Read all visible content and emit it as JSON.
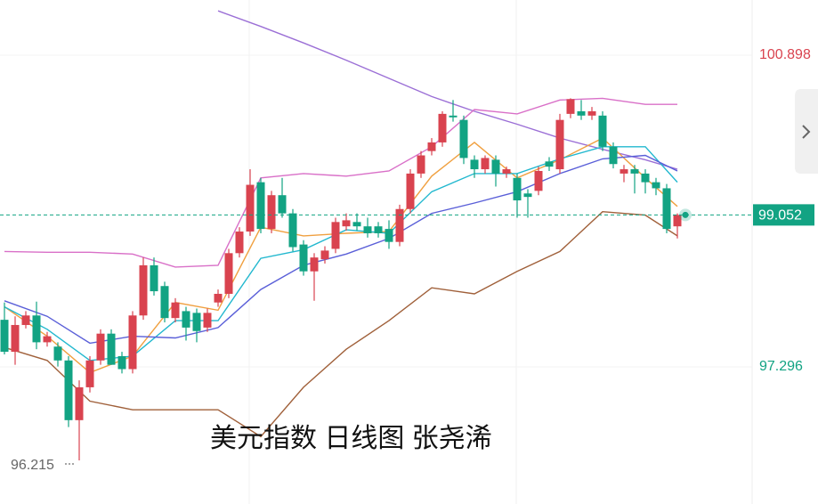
{
  "chart_data": {
    "type": "candlestick",
    "title": "美元指数 日线图 张尧浠",
    "ylim": [
      95.711,
      101.536
    ],
    "yticks": [
      100.898,
      97.296
    ],
    "ytick_colors": [
      "#d9434f",
      "#12a383"
    ],
    "up_color": "#d9434f",
    "down_color": "#12a383",
    "last_price_color": "#12a383",
    "grid": true,
    "candles": {
      "open": [
        97.84,
        97.47,
        97.78,
        97.89,
        97.58,
        97.53,
        97.37,
        96.68,
        97.06,
        97.37,
        97.68,
        97.42,
        97.27,
        97.89,
        98.47,
        98.23,
        97.86,
        97.94,
        97.92,
        97.75,
        98.04,
        98.14,
        98.61,
        98.86,
        99.43,
        98.89,
        99.28,
        99.07,
        98.71,
        98.4,
        98.54,
        98.66,
        98.92,
        98.97,
        98.92,
        98.92,
        98.89,
        98.74,
        99.12,
        99.53,
        99.79,
        99.89,
        100.2,
        100.15,
        99.69,
        99.58,
        99.69,
        99.53,
        99.48,
        99.3,
        99.33,
        99.67,
        99.58,
        100.22,
        100.25,
        100.2,
        100.2,
        99.84,
        99.53,
        99.58,
        99.53,
        99.43,
        99.36,
        98.92
      ],
      "high": [
        98.04,
        97.88,
        97.94,
        98.05,
        97.7,
        97.58,
        97.42,
        97.14,
        97.42,
        97.73,
        97.73,
        97.47,
        97.94,
        98.56,
        98.56,
        98.28,
        98.09,
        97.99,
        97.97,
        97.97,
        98.19,
        98.66,
        98.91,
        99.58,
        99.48,
        99.33,
        99.48,
        99.12,
        98.76,
        98.61,
        98.69,
        99.02,
        99.07,
        99.07,
        99.02,
        98.97,
        98.99,
        99.17,
        99.58,
        99.79,
        99.94,
        100.25,
        100.38,
        100.2,
        99.74,
        99.74,
        99.74,
        99.61,
        99.53,
        99.35,
        99.61,
        99.72,
        100.22,
        100.4,
        100.38,
        100.3,
        100.25,
        99.89,
        99.63,
        99.63,
        99.58,
        99.48,
        99.41,
        99.07
      ],
      "low": [
        97.44,
        97.32,
        97.74,
        97.5,
        97.53,
        97.3,
        96.6,
        96.215,
        97.0,
        97.32,
        97.32,
        97.22,
        97.22,
        97.84,
        98.12,
        97.81,
        97.81,
        97.6,
        97.58,
        97.7,
        97.99,
        98.09,
        98.56,
        98.81,
        98.84,
        98.84,
        99.02,
        98.63,
        98.35,
        98.06,
        98.49,
        98.61,
        98.87,
        98.87,
        98.79,
        98.79,
        98.66,
        98.69,
        99.07,
        99.48,
        99.74,
        99.84,
        100.13,
        99.64,
        99.48,
        99.53,
        99.38,
        99.48,
        99.02,
        99.02,
        99.28,
        99.56,
        99.53,
        100.17,
        100.15,
        100.15,
        99.79,
        99.59,
        99.43,
        99.3,
        99.3,
        99.28,
        98.84,
        98.78
      ],
      "close": [
        97.47,
        97.78,
        97.89,
        97.58,
        97.65,
        97.37,
        96.68,
        97.06,
        97.37,
        97.68,
        97.32,
        97.27,
        97.89,
        98.47,
        98.17,
        97.86,
        98.04,
        97.75,
        97.71,
        97.92,
        98.14,
        98.61,
        98.86,
        99.4,
        98.89,
        99.28,
        99.07,
        98.68,
        98.4,
        98.56,
        98.64,
        98.97,
        98.99,
        98.92,
        98.84,
        98.84,
        98.74,
        99.12,
        99.53,
        99.74,
        99.89,
        100.22,
        100.18,
        99.71,
        99.58,
        99.71,
        99.53,
        99.58,
        99.22,
        99.26,
        99.56,
        99.61,
        100.15,
        100.39,
        100.2,
        100.25,
        99.84,
        99.64,
        99.58,
        99.53,
        99.43,
        99.36,
        98.89,
        99.052
      ]
    },
    "line_x": [
      0,
      4,
      8,
      12,
      16,
      20,
      24,
      28,
      32,
      36,
      40,
      44,
      48,
      52,
      56,
      60,
      63
    ],
    "series": [
      {
        "color": "#9b6fd6",
        "values": [
          null,
          null,
          null,
          null,
          null,
          101.41,
          101.23,
          101.04,
          100.84,
          100.63,
          100.42,
          100.25,
          100.1,
          99.94,
          99.81,
          99.69,
          99.58
        ]
      },
      {
        "color": "#d970c8",
        "values": [
          98.63,
          98.62,
          98.62,
          98.6,
          98.45,
          98.47,
          99.48,
          99.53,
          99.5,
          99.56,
          99.84,
          100.27,
          100.22,
          100.38,
          100.4,
          100.33,
          100.33
        ]
      },
      {
        "color": "#a0603a",
        "values": [
          97.52,
          97.37,
          96.9,
          96.8,
          96.8,
          96.8,
          96.49,
          97.06,
          97.5,
          97.83,
          98.21,
          98.14,
          98.4,
          98.63,
          99.09,
          99.05,
          98.81
        ]
      },
      {
        "color": "#f0a040",
        "values": [
          97.99,
          97.65,
          97.23,
          97.42,
          98.04,
          97.95,
          98.91,
          98.81,
          98.84,
          98.86,
          99.5,
          99.89,
          99.48,
          99.69,
          99.94,
          99.48,
          99.15
        ]
      },
      {
        "color": "#22b8cf",
        "values": [
          97.99,
          97.73,
          97.37,
          97.42,
          97.83,
          97.83,
          98.55,
          98.65,
          98.88,
          98.84,
          99.32,
          99.53,
          99.53,
          99.7,
          99.84,
          99.84,
          99.43
        ]
      },
      {
        "color": "#5a5fd8",
        "values": [
          98.06,
          97.88,
          97.57,
          97.65,
          97.63,
          97.75,
          98.19,
          98.47,
          98.6,
          98.78,
          99.07,
          99.19,
          99.32,
          99.53,
          99.7,
          99.74,
          99.56
        ]
      }
    ]
  }
}
